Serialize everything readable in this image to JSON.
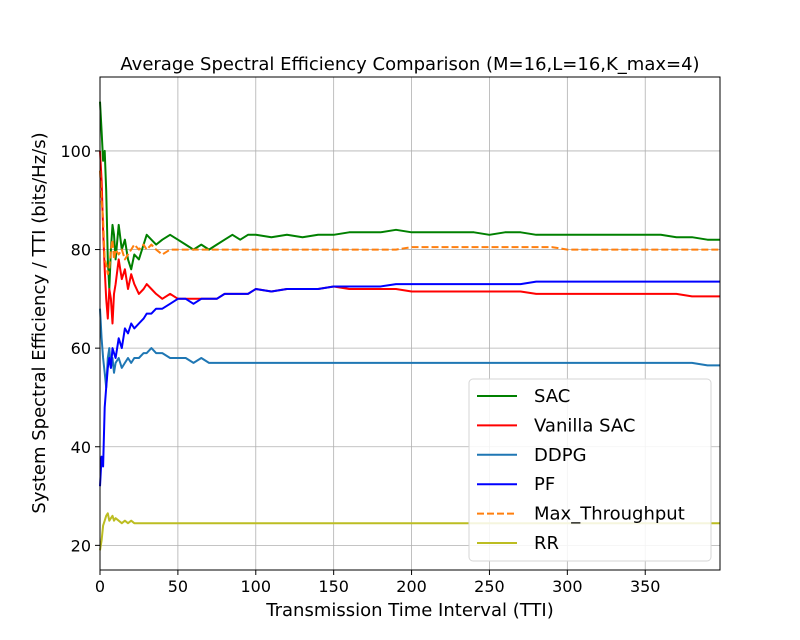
{
  "chart_data": {
    "type": "line",
    "title": "Average Spectral Efficiency Comparison (M=16,L=16,K_max=4)",
    "xlabel": "Transmission Time Interval (TTI)",
    "ylabel": "System Spectral Efficiency / TTI (bits/Hz/s)",
    "xlim": [
      0,
      398
    ],
    "ylim": [
      15,
      115
    ],
    "x_ticks": [
      0,
      50,
      100,
      150,
      200,
      250,
      300,
      350
    ],
    "y_ticks": [
      20,
      40,
      60,
      80,
      100
    ],
    "grid": true,
    "legend_position": "lower-right",
    "series": [
      {
        "name": "SAC",
        "color": "#008000",
        "dash": "solid",
        "x": [
          0,
          1,
          2,
          3,
          4,
          5,
          6,
          7,
          8,
          9,
          10,
          12,
          14,
          16,
          18,
          20,
          22,
          25,
          28,
          30,
          33,
          36,
          40,
          45,
          50,
          55,
          60,
          65,
          70,
          75,
          80,
          85,
          90,
          95,
          100,
          110,
          120,
          130,
          140,
          150,
          160,
          170,
          180,
          190,
          200,
          210,
          220,
          230,
          240,
          250,
          260,
          270,
          280,
          290,
          300,
          310,
          320,
          330,
          340,
          350,
          360,
          370,
          380,
          390,
          398
        ],
        "values": [
          110,
          104,
          98,
          100,
          92,
          78,
          72,
          80,
          85,
          83,
          78,
          85,
          80,
          82,
          78,
          76,
          79,
          78,
          81,
          83,
          82,
          81,
          82,
          83,
          82,
          81,
          80,
          81,
          80,
          81,
          82,
          83,
          82,
          83,
          83,
          82.5,
          83,
          82.5,
          83,
          83,
          83.5,
          83.5,
          83.5,
          84,
          83.5,
          83.5,
          83.5,
          83.5,
          83.5,
          83,
          83.5,
          83.5,
          83,
          83,
          83,
          83,
          83,
          83,
          83,
          83,
          83,
          82.5,
          82.5,
          82,
          82
        ]
      },
      {
        "name": "Vanilla SAC",
        "color": "#ff0000",
        "dash": "solid",
        "x": [
          0,
          1,
          2,
          3,
          4,
          5,
          6,
          7,
          8,
          9,
          10,
          12,
          14,
          16,
          18,
          20,
          22,
          25,
          28,
          30,
          33,
          36,
          40,
          45,
          50,
          55,
          60,
          65,
          70,
          75,
          80,
          85,
          90,
          95,
          100,
          110,
          120,
          130,
          140,
          150,
          160,
          170,
          180,
          190,
          200,
          210,
          220,
          230,
          240,
          250,
          260,
          270,
          280,
          290,
          300,
          310,
          320,
          330,
          340,
          350,
          360,
          370,
          380,
          390,
          398
        ],
        "values": [
          100,
          94,
          84,
          76,
          70,
          66,
          72,
          70,
          65,
          71,
          73,
          78,
          74,
          76,
          72,
          75,
          73,
          71,
          72,
          73,
          72,
          71,
          70,
          71,
          70,
          70,
          70,
          70,
          70,
          70,
          71,
          71,
          71,
          71,
          72,
          71.5,
          72,
          72,
          72,
          72.5,
          72,
          72,
          72,
          72,
          71.5,
          71.5,
          71.5,
          71.5,
          71.5,
          71.5,
          71.5,
          71.5,
          71,
          71,
          71,
          71,
          71,
          71,
          71,
          71,
          71,
          71,
          70.5,
          70.5,
          70.5
        ]
      },
      {
        "name": "DDPG",
        "color": "#1f77b4",
        "dash": "solid",
        "x": [
          0,
          1,
          2,
          3,
          4,
          5,
          6,
          7,
          8,
          9,
          10,
          12,
          14,
          16,
          18,
          20,
          22,
          25,
          28,
          30,
          33,
          36,
          40,
          45,
          50,
          55,
          60,
          65,
          70,
          75,
          80,
          85,
          90,
          95,
          100,
          110,
          120,
          130,
          140,
          150,
          160,
          170,
          180,
          190,
          200,
          210,
          220,
          230,
          240,
          250,
          260,
          270,
          280,
          290,
          300,
          310,
          320,
          330,
          340,
          350,
          360,
          370,
          380,
          390,
          398
        ],
        "values": [
          68,
          62,
          58,
          55,
          52,
          58,
          60,
          56,
          58,
          55,
          57,
          58,
          56,
          57,
          58,
          57,
          58,
          58,
          59,
          59,
          60,
          59,
          59,
          58,
          58,
          58,
          57,
          58,
          57,
          57,
          57,
          57,
          57,
          57,
          57,
          57,
          57,
          57,
          57,
          57,
          57,
          57,
          57,
          57,
          57,
          57,
          57,
          57,
          57,
          57,
          57,
          57,
          57,
          57,
          57,
          57,
          57,
          57,
          57,
          57,
          57,
          57,
          57,
          56.5,
          56.5
        ]
      },
      {
        "name": "PF",
        "color": "#0000ff",
        "dash": "solid",
        "x": [
          0,
          1,
          2,
          3,
          4,
          5,
          6,
          7,
          8,
          9,
          10,
          12,
          14,
          16,
          18,
          20,
          22,
          25,
          28,
          30,
          33,
          36,
          40,
          45,
          50,
          55,
          60,
          65,
          70,
          75,
          80,
          85,
          90,
          95,
          100,
          110,
          120,
          130,
          140,
          150,
          160,
          170,
          180,
          190,
          200,
          210,
          220,
          230,
          240,
          250,
          260,
          270,
          280,
          290,
          300,
          310,
          320,
          330,
          340,
          350,
          360,
          370,
          380,
          390,
          398
        ],
        "values": [
          32,
          38,
          36,
          48,
          52,
          56,
          58,
          56,
          60,
          59,
          58,
          62,
          60,
          64,
          63,
          65,
          64,
          65,
          66,
          67,
          67,
          68,
          68,
          69,
          70,
          70,
          69,
          70,
          70,
          70,
          71,
          71,
          71,
          71,
          72,
          71.5,
          72,
          72,
          72,
          72.5,
          72.5,
          72.5,
          72.5,
          73,
          73,
          73,
          73,
          73,
          73,
          73,
          73,
          73,
          73.5,
          73.5,
          73.5,
          73.5,
          73.5,
          73.5,
          73.5,
          73.5,
          73.5,
          73.5,
          73.5,
          73.5,
          73.5
        ]
      },
      {
        "name": "Max_Throughput",
        "color": "#ff7f0e",
        "dash": "dashed",
        "x": [
          0,
          1,
          2,
          3,
          4,
          5,
          6,
          7,
          8,
          9,
          10,
          12,
          14,
          16,
          18,
          20,
          22,
          25,
          28,
          30,
          33,
          36,
          40,
          45,
          50,
          55,
          60,
          65,
          70,
          75,
          80,
          85,
          90,
          95,
          100,
          110,
          120,
          130,
          140,
          150,
          160,
          170,
          180,
          190,
          200,
          210,
          220,
          230,
          240,
          250,
          260,
          270,
          280,
          290,
          300,
          310,
          320,
          330,
          340,
          350,
          360,
          370,
          380,
          390,
          398
        ],
        "values": [
          96,
          90,
          86,
          78,
          77,
          75,
          76,
          80,
          82,
          78,
          80,
          79,
          80,
          78,
          79,
          80,
          81,
          80,
          81,
          80,
          81,
          80,
          79,
          80,
          80,
          80,
          80,
          80,
          80,
          80,
          80,
          80,
          80,
          80,
          80,
          80,
          80,
          80,
          80,
          80,
          80,
          80,
          80,
          80,
          80.5,
          80.5,
          80.5,
          80.5,
          80.5,
          80.5,
          80.5,
          80.5,
          80.5,
          80.5,
          80,
          80,
          80,
          80,
          80,
          80,
          80,
          80,
          80,
          80,
          80
        ]
      },
      {
        "name": "RR",
        "color": "#bcbd22",
        "dash": "solid",
        "x": [
          0,
          1,
          2,
          3,
          4,
          5,
          6,
          7,
          8,
          9,
          10,
          12,
          14,
          16,
          18,
          20,
          22,
          25,
          28,
          30,
          33,
          36,
          40,
          45,
          50,
          55,
          60,
          65,
          70,
          75,
          80,
          85,
          90,
          95,
          100,
          110,
          120,
          130,
          140,
          150,
          160,
          170,
          180,
          190,
          200,
          210,
          220,
          230,
          240,
          250,
          260,
          270,
          280,
          290,
          300,
          310,
          320,
          330,
          340,
          350,
          360,
          370,
          380,
          390,
          398
        ],
        "values": [
          19,
          21,
          24,
          25,
          26,
          26.5,
          25,
          25.5,
          26,
          25,
          25.5,
          25,
          24.5,
          25,
          24.5,
          25,
          24.5,
          24.5,
          24.5,
          24.5,
          24.5,
          24.5,
          24.5,
          24.5,
          24.5,
          24.5,
          24.5,
          24.5,
          24.5,
          24.5,
          24.5,
          24.5,
          24.5,
          24.5,
          24.5,
          24.5,
          24.5,
          24.5,
          24.5,
          24.5,
          24.5,
          24.5,
          24.5,
          24.5,
          24.5,
          24.5,
          24.5,
          24.5,
          24.5,
          24.5,
          24.5,
          24.5,
          24.5,
          24.5,
          24.5,
          24.5,
          24.5,
          24.5,
          24.5,
          24.5,
          24.5,
          24.5,
          24.5,
          24.5,
          24.5
        ]
      }
    ]
  }
}
